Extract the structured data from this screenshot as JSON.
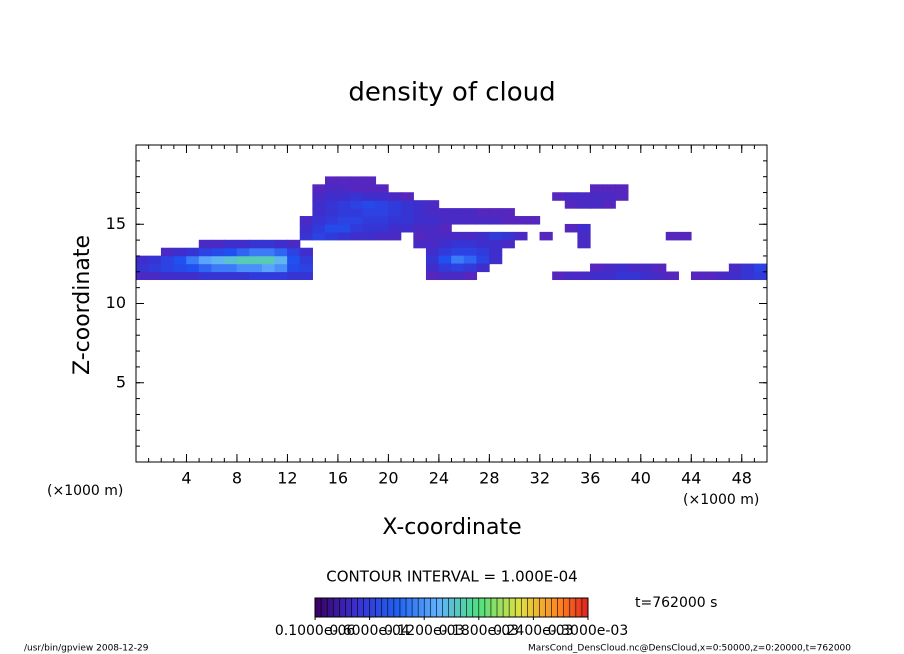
{
  "chart_data": {
    "type": "heatmap",
    "title": "density of cloud",
    "x_label": "X-coordinate",
    "y_label": "Z-coordinate",
    "x_unit_left": "(×1000 m)",
    "x_unit_right": "(×1000 m)",
    "contour_interval": "CONTOUR INTERVAL = 1.000E-04",
    "time_label": "t=762000 s",
    "footer_left": "/usr/bin/gpview   2008-12-29",
    "footer_right": "MarsCond_DensCloud.nc@DensCloud,x=0:50000,z=0:20000,t=762000",
    "xlim": [
      0,
      50
    ],
    "ylim": [
      0,
      20
    ],
    "xticks": [
      4,
      8,
      12,
      16,
      20,
      24,
      28,
      32,
      36,
      40,
      44,
      48
    ],
    "yticks": [
      5,
      10,
      15
    ],
    "clim": [
      0,
      0.0003
    ],
    "cticks": [
      {
        "value": 1e-07,
        "label": "0.1000e-06"
      },
      {
        "value": 6e-05,
        "label": "0.6000e-04"
      },
      {
        "value": 0.00012,
        "label": "0.1200e-03"
      },
      {
        "value": 0.00018,
        "label": "0.1800e-03"
      },
      {
        "value": 0.00024,
        "label": "0.2400e-03"
      },
      {
        "value": 0.0003,
        "label": "0.3000e-03"
      }
    ],
    "rows": [
      {
        "z": 11.75,
        "x": [
          0.5,
          1.5,
          2.5,
          3.5,
          4.5,
          5.5,
          6.5,
          7.5,
          8.5,
          9.5,
          10.5,
          11.5,
          12.5,
          13.5
        ],
        "values": [
          3e-05,
          3e-05,
          4e-05,
          4e-05,
          4e-05,
          5e-05,
          5e-05,
          5e-05,
          5e-05,
          6e-05,
          6e-05,
          6e-05,
          5e-05,
          5e-05
        ]
      },
      {
        "z": 12.25,
        "x": [
          0.5,
          1.5,
          2.5,
          3.5,
          4.5,
          5.5,
          6.5,
          7.5,
          8.5,
          9.5,
          10.5,
          11.5,
          12.5,
          13.5
        ],
        "values": [
          5e-05,
          6e-05,
          7e-05,
          8e-05,
          9e-05,
          0.0001,
          0.00011,
          0.00011,
          0.00012,
          0.00012,
          0.00013,
          0.00012,
          8e-05,
          7e-05
        ]
      },
      {
        "z": 12.75,
        "x": [
          0.5,
          1.5,
          2.5,
          3.5,
          4.5,
          5.5,
          6.5,
          7.5,
          8.5,
          9.5,
          10.5,
          11.5,
          12.5,
          13.5
        ],
        "values": [
          4e-05,
          5e-05,
          7e-05,
          9e-05,
          0.00011,
          0.00013,
          0.00014,
          0.00015,
          0.00016,
          0.00016,
          0.00016,
          0.00014,
          9e-05,
          6e-05
        ]
      },
      {
        "z": 13.25,
        "x": [
          2.5,
          3.5,
          4.5,
          5.5,
          6.5,
          7.5,
          8.5,
          9.5,
          10.5,
          11.5,
          12.5,
          13.5
        ],
        "values": [
          3e-05,
          4e-05,
          5e-05,
          7e-05,
          8e-05,
          9e-05,
          0.0001,
          0.00011,
          0.00011,
          0.0001,
          7e-05,
          4e-05
        ]
      },
      {
        "z": 13.75,
        "x": [
          5.5,
          6.5,
          7.5,
          8.5,
          9.5,
          10.5,
          11.5,
          12.5
        ],
        "values": [
          3e-05,
          3e-05,
          4e-05,
          4e-05,
          5e-05,
          5e-05,
          4e-05,
          3e-05
        ]
      },
      {
        "z": 14.25,
        "x": [
          13.5,
          14.5,
          15.5,
          16.5,
          17.5,
          18.5,
          19.5,
          20.5,
          22.5,
          23.5,
          24.5,
          25.5,
          26.5,
          27.5,
          28.5,
          29.5,
          30.5,
          32.5,
          35.5,
          42.5,
          43.5
        ],
        "values": [
          5e-05,
          7e-05,
          6e-05,
          5e-05,
          4e-05,
          4e-05,
          3e-05,
          3e-05,
          2e-05,
          3e-05,
          3e-05,
          3e-05,
          3e-05,
          4e-05,
          6e-05,
          5e-05,
          3e-05,
          2e-05,
          3e-05,
          2e-05,
          2e-05
        ]
      },
      {
        "z": 14.75,
        "x": [
          13.5,
          14.5,
          15.5,
          16.5,
          17.5,
          18.5,
          19.5,
          20.5,
          21.5,
          22.5,
          23.5,
          24.5,
          34.5,
          35.5
        ],
        "values": [
          4e-05,
          6e-05,
          8e-05,
          8e-05,
          6e-05,
          5e-05,
          5e-05,
          4e-05,
          4e-05,
          3e-05,
          3e-05,
          2e-05,
          2e-05,
          4e-05
        ]
      },
      {
        "z": 15.25,
        "x": [
          13.5,
          14.5,
          15.5,
          16.5,
          17.5,
          18.5,
          19.5,
          20.5,
          21.5,
          22.5,
          23.5,
          24.5,
          25.5,
          26.5,
          27.5,
          28.5,
          29.5,
          30.5,
          31.5
        ],
        "values": [
          3e-05,
          5e-05,
          6e-05,
          7e-05,
          7e-05,
          6e-05,
          6e-05,
          5e-05,
          5e-05,
          4e-05,
          4e-05,
          3e-05,
          3e-05,
          3e-05,
          3e-05,
          3e-05,
          2e-05,
          2e-05,
          2e-05
        ]
      },
      {
        "z": 15.75,
        "x": [
          14.5,
          15.5,
          16.5,
          17.5,
          18.5,
          19.5,
          20.5,
          21.5,
          22.5,
          23.5,
          24.5,
          25.5,
          26.5,
          27.5,
          28.5,
          29.5
        ],
        "values": [
          4e-05,
          5e-05,
          6e-05,
          6e-05,
          7e-05,
          7e-05,
          6e-05,
          5e-05,
          4e-05,
          3e-05,
          3e-05,
          3e-05,
          3e-05,
          2e-05,
          2e-05,
          2e-05
        ]
      },
      {
        "z": 16.25,
        "x": [
          14.5,
          15.5,
          16.5,
          17.5,
          18.5,
          19.5,
          20.5,
          21.5,
          22.5,
          23.5,
          34.5,
          35.5,
          36.5,
          37.5
        ],
        "values": [
          4e-05,
          5e-05,
          6e-05,
          7e-05,
          8e-05,
          7e-05,
          6e-05,
          5e-05,
          4e-05,
          3e-05,
          2e-05,
          3e-05,
          3e-05,
          2e-05
        ]
      },
      {
        "z": 16.75,
        "x": [
          14.5,
          15.5,
          16.5,
          17.5,
          18.5,
          19.5,
          20.5,
          21.5,
          33.5,
          34.5,
          35.5,
          36.5,
          37.5,
          38.5
        ],
        "values": [
          3e-05,
          4e-05,
          4e-05,
          5e-05,
          4e-05,
          4e-05,
          3e-05,
          2e-05,
          2e-05,
          3e-05,
          3e-05,
          3e-05,
          3e-05,
          2e-05
        ]
      },
      {
        "z": 17.25,
        "x": [
          14.5,
          15.5,
          16.5,
          17.5,
          18.5,
          19.5,
          36.5,
          37.5,
          38.5
        ],
        "values": [
          2e-05,
          3e-05,
          3e-05,
          2e-05,
          2e-05,
          2e-05,
          2e-05,
          2e-05,
          2e-05
        ]
      },
      {
        "z": 17.75,
        "x": [
          15.5,
          16.5,
          17.5,
          18.5
        ],
        "values": [
          2e-05,
          2e-05,
          2e-05,
          2e-05
        ]
      },
      {
        "z": 13.75,
        "x": [
          22.5,
          23.5,
          24.5,
          25.5,
          26.5,
          27.5,
          28.5,
          29.5,
          35.5
        ],
        "values": [
          3e-05,
          3e-05,
          4e-05,
          5e-05,
          5e-05,
          4e-05,
          4e-05,
          3e-05,
          3e-05
        ]
      },
      {
        "z": 13.25,
        "x": [
          23.5,
          24.5,
          25.5,
          26.5,
          27.5,
          28.5
        ],
        "values": [
          4e-05,
          6e-05,
          7e-05,
          7e-05,
          6e-05,
          4e-05
        ]
      },
      {
        "z": 12.75,
        "x": [
          23.5,
          24.5,
          25.5,
          26.5,
          27.5,
          28.5
        ],
        "values": [
          5e-05,
          9e-05,
          0.00011,
          0.0001,
          7e-05,
          4e-05
        ]
      },
      {
        "z": 12.25,
        "x": [
          23.5,
          24.5,
          25.5,
          26.5,
          27.5,
          36.5,
          37.5,
          38.5,
          39.5,
          40.5,
          41.5,
          47.5,
          48.5,
          49.5
        ],
        "values": [
          4e-05,
          6e-05,
          7e-05,
          6e-05,
          4e-05,
          2e-05,
          3e-05,
          4e-05,
          3e-05,
          3e-05,
          2e-05,
          3e-05,
          5e-05,
          7e-05
        ]
      },
      {
        "z": 11.75,
        "x": [
          23.5,
          24.5,
          25.5,
          26.5,
          33.5,
          34.5,
          35.5,
          36.5,
          37.5,
          38.5,
          39.5,
          40.5,
          41.5,
          42.5,
          44.5,
          45.5,
          46.5,
          47.5,
          48.5,
          49.5
        ],
        "values": [
          2e-05,
          3e-05,
          3e-05,
          2e-05,
          2e-05,
          3e-05,
          3e-05,
          4e-05,
          4e-05,
          5e-05,
          5e-05,
          4e-05,
          3e-05,
          2e-05,
          2e-05,
          2e-05,
          3e-05,
          4e-05,
          5e-05,
          6e-05
        ]
      }
    ]
  }
}
